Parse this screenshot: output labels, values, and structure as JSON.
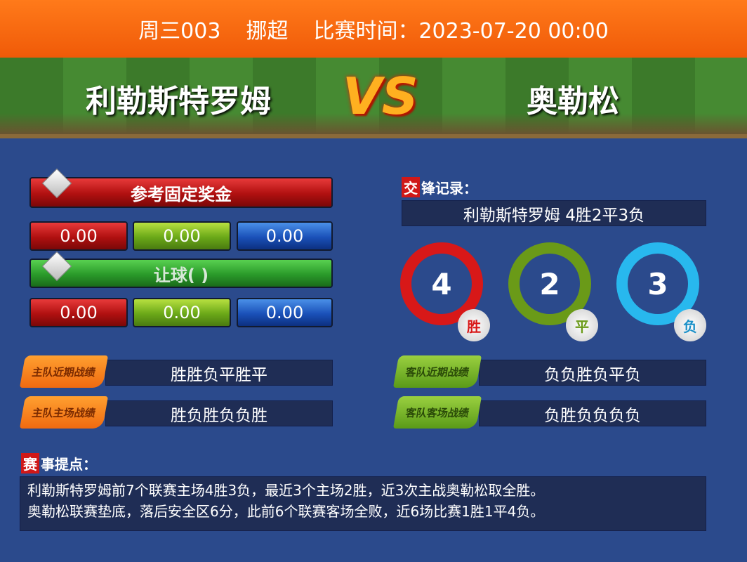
{
  "header": {
    "match_no": "周三003",
    "league": "挪超",
    "time_label": "比赛时间：",
    "time": "2023-07-20 00:00"
  },
  "teams": {
    "home": "利勒斯特罗姆",
    "vs": "VS",
    "away": "奥勒松"
  },
  "odds": {
    "fixed_title": "参考固定奖金",
    "fixed": [
      "0.00",
      "0.00",
      "0.00"
    ],
    "handicap_title": "让球(    )",
    "handicap": [
      "0.00",
      "0.00",
      "0.00"
    ]
  },
  "h2h": {
    "title_mark": "交",
    "title": "锋记录：",
    "summary": "利勒斯特罗姆  4胜2平3负",
    "stats": [
      {
        "value": "4",
        "label": "胜",
        "color": "#d81818"
      },
      {
        "value": "2",
        "label": "平",
        "color": "#6a9a18"
      },
      {
        "value": "3",
        "label": "负",
        "color": "#28b8ee"
      }
    ]
  },
  "form": {
    "home_recent_label": "主队近期战绩",
    "home_recent": "胜胜负平胜平",
    "home_home_label": "主队主场战绩",
    "home_home": "胜负胜负负胜",
    "away_recent_label": "客队近期战绩",
    "away_recent": "负负胜负平负",
    "away_away_label": "客队客场战绩",
    "away_away": "负胜负负负负"
  },
  "notes": {
    "title_mark": "赛",
    "title": "事提点：",
    "lines": [
      "利勒斯特罗姆前7个联赛主场4胜3负，最近3个主场2胜，近3次主战奥勒松取全胜。",
      "奥勒松联赛垫底，落后安全区6分，此前6个联赛客场全败，近6场比赛1胜1平4负。"
    ]
  }
}
